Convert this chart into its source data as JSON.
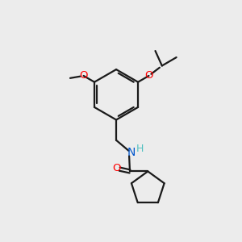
{
  "background_color": "#ececec",
  "bond_color": "#1a1a1a",
  "oxygen_color": "#ff0000",
  "nitrogen_color": "#0055cc",
  "h_color": "#4fc0c0",
  "figsize": [
    3.0,
    3.0
  ],
  "dpi": 100,
  "xlim": [
    0,
    10
  ],
  "ylim": [
    0,
    10
  ]
}
